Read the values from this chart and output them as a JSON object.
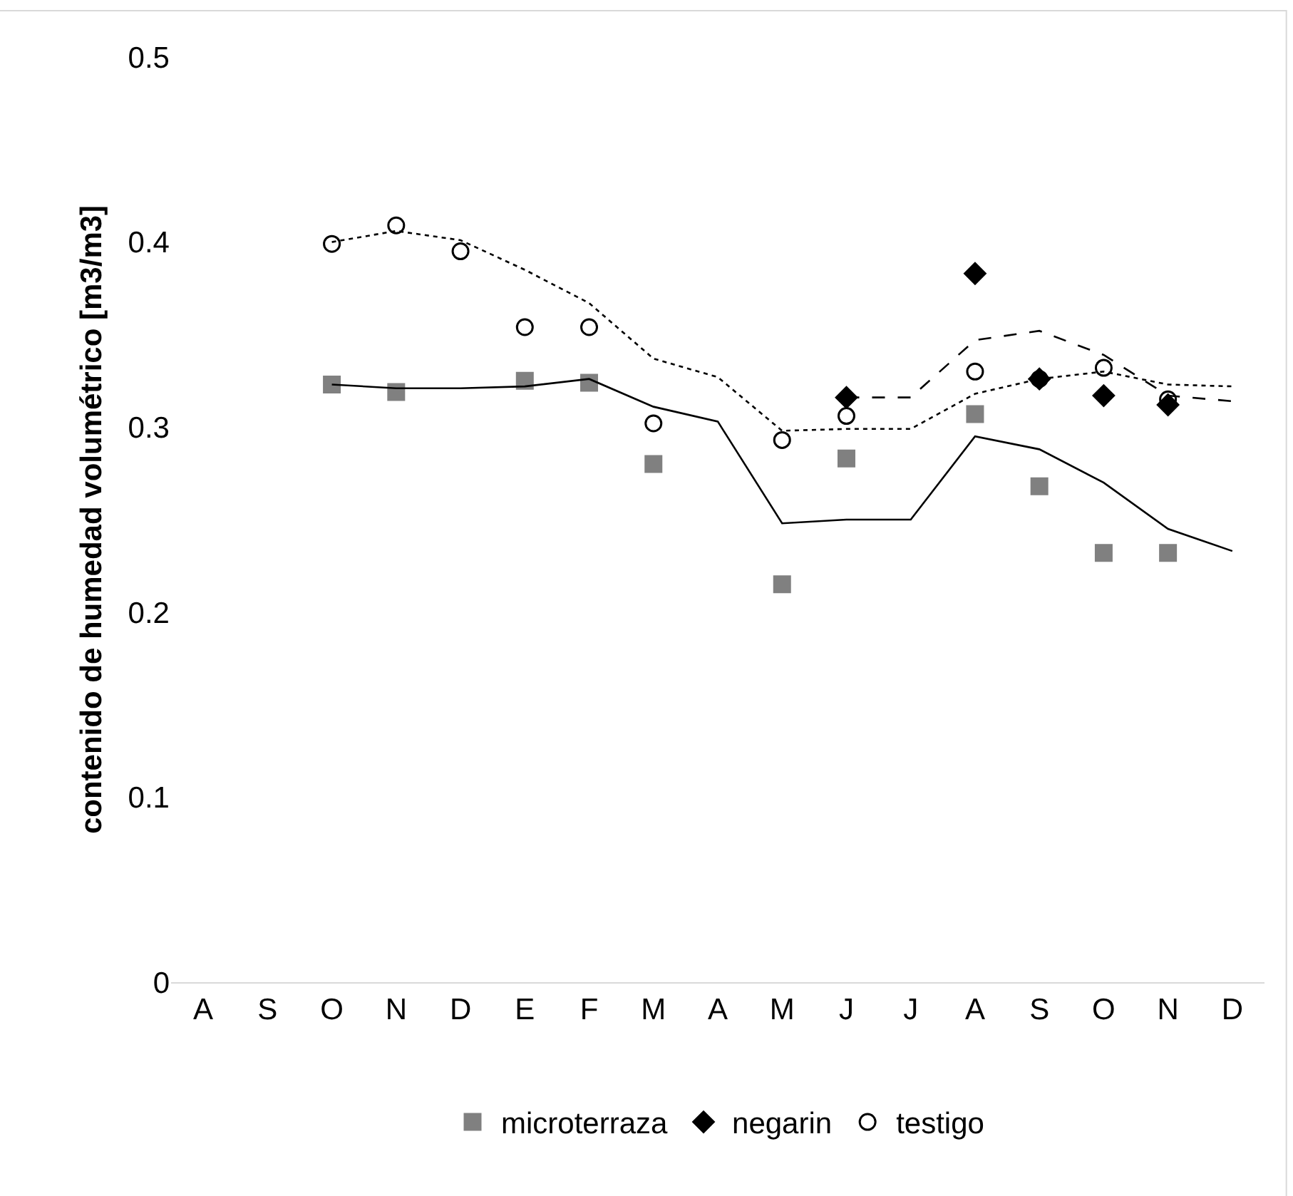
{
  "chart_data": {
    "type": "scatter",
    "ylabel": "contenido de humedad volumétrico [m3/m3]",
    "categories": [
      "A",
      "S",
      "O",
      "N",
      "D",
      "E",
      "F",
      "M",
      "A",
      "M",
      "J",
      "J",
      "A",
      "S",
      "O",
      "N",
      "D"
    ],
    "ylim": [
      0,
      0.5
    ],
    "yticks": [
      0,
      0.1,
      0.2,
      0.3,
      0.4,
      0.5
    ],
    "grid": false,
    "legend": "bottom",
    "series": [
      {
        "name": "microterraza",
        "marker": "square",
        "color": "#808080",
        "values": [
          null,
          null,
          0.323,
          0.319,
          null,
          0.325,
          0.324,
          0.28,
          null,
          0.215,
          0.283,
          null,
          0.307,
          0.268,
          0.232,
          0.232,
          null
        ]
      },
      {
        "name": "negarin",
        "marker": "diamond",
        "color": "#000000",
        "values": [
          null,
          null,
          null,
          null,
          null,
          null,
          null,
          null,
          null,
          null,
          0.316,
          null,
          0.383,
          0.326,
          0.317,
          0.312,
          null
        ]
      },
      {
        "name": "testigo",
        "marker": "circle",
        "color": "#000000",
        "values": [
          null,
          null,
          0.399,
          0.409,
          0.395,
          0.354,
          0.354,
          0.302,
          null,
          0.293,
          0.306,
          null,
          0.33,
          0.326,
          0.332,
          0.315,
          null
        ]
      },
      {
        "type": "line",
        "line_style": "solid",
        "color": "#000000",
        "values": [
          null,
          null,
          0.323,
          0.321,
          0.321,
          0.322,
          0.326,
          0.311,
          0.303,
          0.248,
          0.25,
          0.25,
          0.295,
          0.288,
          0.27,
          0.245,
          0.233
        ]
      },
      {
        "type": "line",
        "line_style": "dashed",
        "color": "#000000",
        "values": [
          null,
          null,
          null,
          null,
          null,
          null,
          null,
          null,
          null,
          null,
          0.316,
          0.316,
          0.347,
          0.352,
          0.339,
          0.317,
          0.314
        ]
      },
      {
        "type": "line",
        "line_style": "dotted",
        "color": "#000000",
        "values": [
          null,
          null,
          0.4,
          0.406,
          0.401,
          0.385,
          0.367,
          0.337,
          0.327,
          0.298,
          0.299,
          0.299,
          0.318,
          0.326,
          0.33,
          0.323,
          0.322
        ]
      }
    ]
  }
}
